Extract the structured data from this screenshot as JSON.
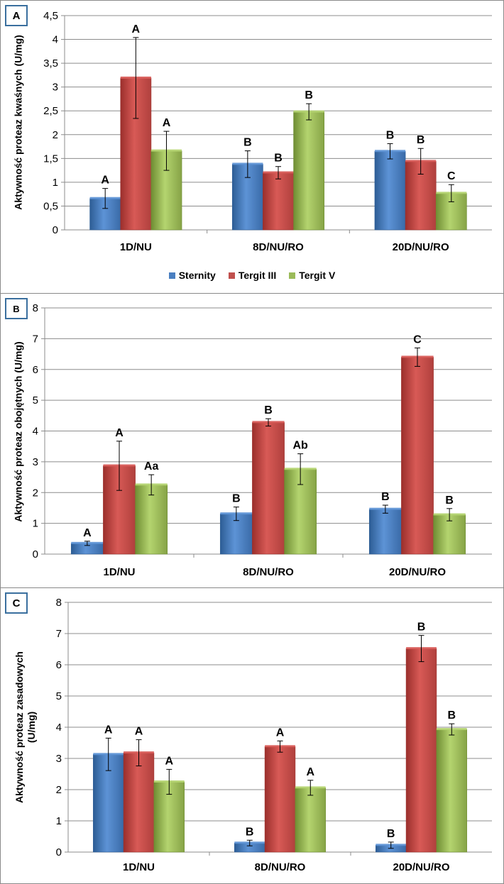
{
  "chart_data": [
    {
      "type": "bar",
      "panel_label": "A",
      "ylabel": "Aktywność proteaz kwaśnych (U/mg)",
      "categories": [
        "1D/NU",
        "8D/NU/RO",
        "20D/NU/RO"
      ],
      "ylim": [
        0,
        4.5
      ],
      "yticks": [
        "0",
        "0,5",
        "1",
        "1,5",
        "2",
        "2,5",
        "3",
        "3,5",
        "4",
        "4,5"
      ],
      "ytick_values": [
        0,
        0.5,
        1,
        1.5,
        2,
        2.5,
        3,
        3.5,
        4,
        4.5
      ],
      "grid": true,
      "legend_position": "bottom",
      "series": [
        {
          "name": "Sternity",
          "values": [
            0.66,
            1.38,
            1.65
          ],
          "errors": [
            0.21,
            0.28,
            0.16
          ],
          "labels": [
            "A",
            "B",
            "B"
          ]
        },
        {
          "name": "Tergit III",
          "values": [
            3.19,
            1.2,
            1.44
          ],
          "errors": [
            0.85,
            0.13,
            0.27
          ],
          "labels": [
            "A",
            "B",
            "B"
          ]
        },
        {
          "name": "Tergit V",
          "values": [
            1.66,
            2.48,
            0.77
          ],
          "errors": [
            0.41,
            0.17,
            0.18
          ],
          "labels": [
            "A",
            "B",
            "C"
          ]
        }
      ]
    },
    {
      "type": "bar",
      "panel_label": "B",
      "ylabel": "Aktywność proteaz obojętnych (U/mg)",
      "categories": [
        "1D/NU",
        "8D/NU/RO",
        "20D/NU/RO"
      ],
      "ylim": [
        0,
        8
      ],
      "yticks": [
        "0",
        "1",
        "2",
        "3",
        "4",
        "5",
        "6",
        "7",
        "8"
      ],
      "ytick_values": [
        0,
        1,
        2,
        3,
        4,
        5,
        6,
        7,
        8
      ],
      "grid": true,
      "series": [
        {
          "name": "Sternity",
          "values": [
            0.35,
            1.31,
            1.46
          ],
          "errors": [
            0.07,
            0.22,
            0.13
          ],
          "labels": [
            "A",
            "B",
            "B"
          ]
        },
        {
          "name": "Tergit III",
          "values": [
            2.87,
            4.28,
            6.4
          ],
          "errors": [
            0.8,
            0.12,
            0.3
          ],
          "labels": [
            "A",
            "B",
            "C"
          ]
        },
        {
          "name": "Tergit V",
          "values": [
            2.25,
            2.76,
            1.28
          ],
          "errors": [
            0.33,
            0.5,
            0.2
          ],
          "labels": [
            "Aa",
            "Ab",
            "B"
          ]
        }
      ]
    },
    {
      "type": "bar",
      "panel_label": "C",
      "ylabel_lines": [
        "Aktywność proteaz zasadowych",
        "(U/mg)"
      ],
      "categories": [
        "1D/NU",
        "8D/NU/RO",
        "20D/NU/RO"
      ],
      "ylim": [
        0,
        8
      ],
      "yticks": [
        "0",
        "1",
        "2",
        "3",
        "4",
        "5",
        "6",
        "7",
        "8"
      ],
      "ytick_values": [
        0,
        1,
        2,
        3,
        4,
        5,
        6,
        7,
        8
      ],
      "grid": true,
      "series": [
        {
          "name": "Sternity",
          "values": [
            3.13,
            0.29,
            0.22
          ],
          "errors": [
            0.52,
            0.09,
            0.1
          ],
          "labels": [
            "A",
            "B",
            "B"
          ]
        },
        {
          "name": "Tergit III",
          "values": [
            3.18,
            3.38,
            6.52
          ],
          "errors": [
            0.42,
            0.18,
            0.42
          ],
          "labels": [
            "A",
            "A",
            "B"
          ]
        },
        {
          "name": "Tergit V",
          "values": [
            2.25,
            2.06,
            3.93
          ],
          "errors": [
            0.4,
            0.24,
            0.18
          ],
          "labels": [
            "A",
            "A",
            "B"
          ]
        }
      ]
    }
  ],
  "legend": {
    "items": [
      {
        "name": "Sternity",
        "color": "#4a7fc1"
      },
      {
        "name": "Tergit III",
        "color": "#c0504d"
      },
      {
        "name": "Tergit V",
        "color": "#9bbb59"
      }
    ]
  },
  "colors": {
    "Sternity": [
      "#2d5d95",
      "#5d93d6",
      "#3a6ba8"
    ],
    "Tergit III": [
      "#9b2f2c",
      "#d85a56",
      "#b0403d"
    ],
    "Tergit V": [
      "#6f8d33",
      "#b4d46f",
      "#86a346"
    ]
  }
}
